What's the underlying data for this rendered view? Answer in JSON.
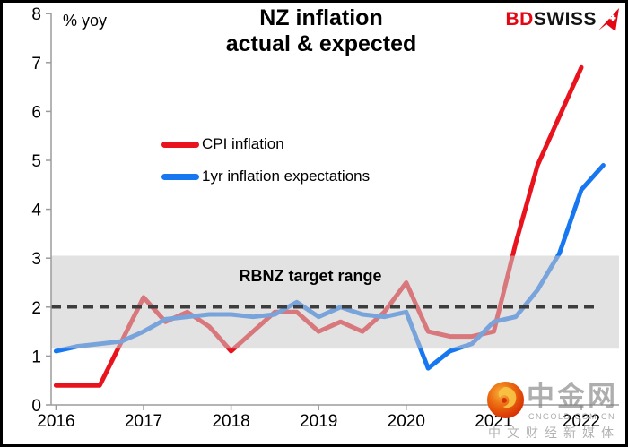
{
  "header": {
    "title_line1": "NZ inflation",
    "title_line2": "actual & expected",
    "y_axis_unit": "% yoy",
    "brand": {
      "part1": "BD",
      "part2": "SWISS"
    }
  },
  "legend": [
    {
      "label": "CPI inflation",
      "color": "#e8131d"
    },
    {
      "label": "1yr inflation expectations",
      "color": "#1677f0"
    }
  ],
  "chart_data": {
    "type": "line",
    "title": "NZ inflation actual & expected",
    "ylabel": "% yoy",
    "ylim": [
      0,
      8
    ],
    "y_ticks": [
      0,
      1,
      2,
      3,
      4,
      5,
      6,
      7,
      8
    ],
    "x_tick_labels": [
      "2016",
      "2017",
      "2018",
      "2019",
      "2020",
      "2021",
      "2022"
    ],
    "x_start": "2016-Q1",
    "points_per_year": 4,
    "grid": "off",
    "legend_position": "upper-left-inside",
    "series": [
      {
        "name": "CPI inflation",
        "color": "#e8131d",
        "values": [
          0.4,
          0.4,
          0.4,
          1.3,
          2.2,
          1.7,
          1.9,
          1.6,
          1.1,
          1.5,
          1.9,
          1.9,
          1.5,
          1.7,
          1.5,
          1.9,
          2.5,
          1.5,
          1.4,
          1.4,
          1.5,
          3.3,
          4.9,
          5.9,
          6.9
        ]
      },
      {
        "name": "1yr inflation expectations",
        "color": "#1677f0",
        "values": [
          1.1,
          1.2,
          1.25,
          1.3,
          1.5,
          1.75,
          1.8,
          1.85,
          1.85,
          1.8,
          1.85,
          2.1,
          1.8,
          2.0,
          1.85,
          1.8,
          1.9,
          0.75,
          1.1,
          1.25,
          1.7,
          1.8,
          2.35,
          3.1,
          4.4,
          4.9
        ]
      }
    ],
    "target_band": {
      "label": "RBNZ target range",
      "low": 1,
      "high": 3,
      "drawn_low": 1.15,
      "drawn_high": 3.05,
      "fill": "#cacaca",
      "opacity": 0.55
    },
    "reference_line": {
      "value": 2,
      "style": "dashed",
      "color": "#3d3d3d"
    }
  },
  "watermark": {
    "cn_name": "中金网",
    "domain": "CNGOLD.COM.CN",
    "tagline": "中文财经新媒体"
  }
}
